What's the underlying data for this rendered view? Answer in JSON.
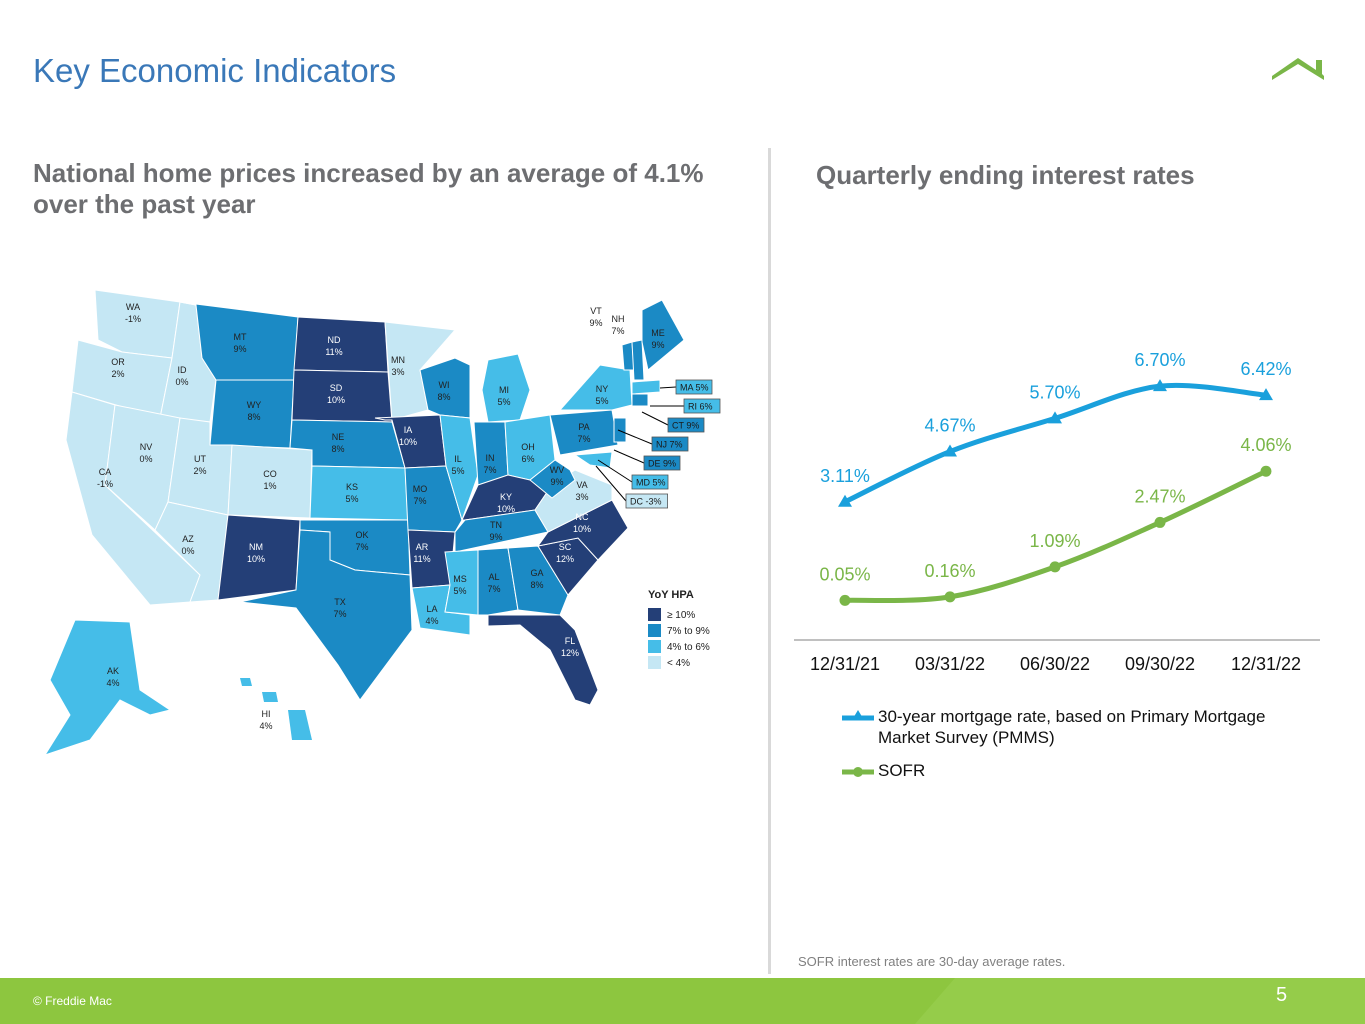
{
  "slide": {
    "title": "Key Economic Indicators",
    "left_heading": "National home prices increased by an average of 4.1% over the past year",
    "right_heading": "Quarterly ending interest rates",
    "footnote": "SOFR interest rates are 30-day average rates.",
    "copyright": "© Freddie Mac",
    "page_number": "5",
    "icon": "home-roof-icon"
  },
  "colors": {
    "title_blue": "#3a78b8",
    "mortgage_line": "#1aa0dc",
    "sofr_line": "#7ab648",
    "footer_green": "#8dc63f",
    "hpa_ge10": "#243f77",
    "hpa_7to9": "#1b8ac5",
    "hpa_4to6": "#45bde8",
    "hpa_lt4": "#c5e7f4"
  },
  "map": {
    "legend_title": "YoY HPA",
    "legend_items": [
      {
        "label": "≥ 10%",
        "color": "#243f77"
      },
      {
        "label": "7% to 9%",
        "color": "#1b8ac5"
      },
      {
        "label": "4% to 6%",
        "color": "#45bde8"
      },
      {
        "label": "< 4%",
        "color": "#c5e7f4"
      }
    ],
    "states": [
      {
        "abbr": "WA",
        "value": "-1%"
      },
      {
        "abbr": "OR",
        "value": "2%"
      },
      {
        "abbr": "CA",
        "value": "-1%"
      },
      {
        "abbr": "ID",
        "value": "0%"
      },
      {
        "abbr": "NV",
        "value": "0%"
      },
      {
        "abbr": "MT",
        "value": "9%"
      },
      {
        "abbr": "WY",
        "value": "8%"
      },
      {
        "abbr": "UT",
        "value": "2%"
      },
      {
        "abbr": "AZ",
        "value": "0%"
      },
      {
        "abbr": "CO",
        "value": "1%"
      },
      {
        "abbr": "NM",
        "value": "10%"
      },
      {
        "abbr": "ND",
        "value": "11%"
      },
      {
        "abbr": "SD",
        "value": "10%"
      },
      {
        "abbr": "NE",
        "value": "8%"
      },
      {
        "abbr": "KS",
        "value": "5%"
      },
      {
        "abbr": "OK",
        "value": "7%"
      },
      {
        "abbr": "TX",
        "value": "7%"
      },
      {
        "abbr": "MN",
        "value": "3%"
      },
      {
        "abbr": "IA",
        "value": "10%"
      },
      {
        "abbr": "MO",
        "value": "7%"
      },
      {
        "abbr": "AR",
        "value": "11%"
      },
      {
        "abbr": "LA",
        "value": "4%"
      },
      {
        "abbr": "WI",
        "value": "8%"
      },
      {
        "abbr": "IL",
        "value": "5%"
      },
      {
        "abbr": "MI",
        "value": "5%"
      },
      {
        "abbr": "IN",
        "value": "7%"
      },
      {
        "abbr": "OH",
        "value": "6%"
      },
      {
        "abbr": "KY",
        "value": "10%"
      },
      {
        "abbr": "TN",
        "value": "9%"
      },
      {
        "abbr": "MS",
        "value": "5%"
      },
      {
        "abbr": "AL",
        "value": "7%"
      },
      {
        "abbr": "GA",
        "value": "8%"
      },
      {
        "abbr": "FL",
        "value": "12%"
      },
      {
        "abbr": "SC",
        "value": "12%"
      },
      {
        "abbr": "NC",
        "value": "10%"
      },
      {
        "abbr": "VA",
        "value": "3%"
      },
      {
        "abbr": "WV",
        "value": "9%"
      },
      {
        "abbr": "PA",
        "value": "7%"
      },
      {
        "abbr": "NY",
        "value": "5%"
      },
      {
        "abbr": "VT",
        "value": "9%"
      },
      {
        "abbr": "NH",
        "value": "7%"
      },
      {
        "abbr": "ME",
        "value": "9%"
      },
      {
        "abbr": "AK",
        "value": "4%"
      },
      {
        "abbr": "HI",
        "value": "4%"
      }
    ],
    "callouts": [
      "MA 5%",
      "RI 6%",
      "CT 9%",
      "NJ 7%",
      "DE 9%",
      "MD 5%",
      "DC -3%"
    ]
  },
  "chart_data": {
    "type": "line",
    "categories": [
      "12/31/21",
      "03/31/22",
      "06/30/22",
      "09/30/22",
      "12/31/22"
    ],
    "series": [
      {
        "name": "30-year mortgage rate, based on Primary Mortgage Market Survey (PMMS)",
        "values": [
          3.11,
          4.67,
          5.7,
          6.7,
          6.42
        ],
        "labels": [
          "3.11%",
          "4.67%",
          "5.70%",
          "6.70%",
          "6.42%"
        ],
        "color": "#1aa0dc",
        "marker": "triangle"
      },
      {
        "name": "SOFR",
        "values": [
          0.05,
          0.16,
          1.09,
          2.47,
          4.06
        ],
        "labels": [
          "0.05%",
          "0.16%",
          "1.09%",
          "2.47%",
          "4.06%"
        ],
        "color": "#7ab648",
        "marker": "circle"
      }
    ],
    "ylim": [
      0,
      7.5
    ],
    "grid": false,
    "legend_position": "bottom"
  }
}
